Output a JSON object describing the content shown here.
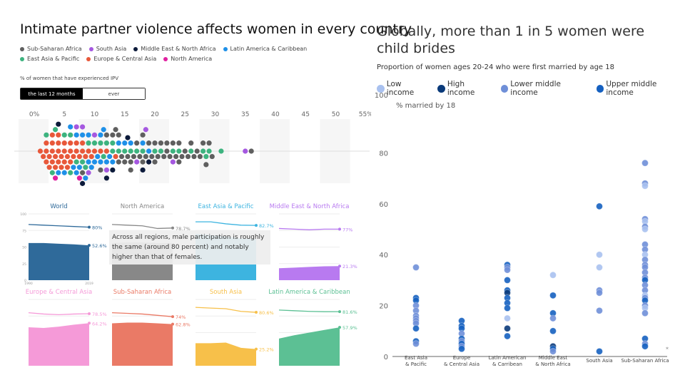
{
  "chart_data": [
    {
      "type": "scatter",
      "title": "Intimate partner violence affects women in every country",
      "subtitle": "% of women that have experienced IPV",
      "toggle": {
        "options": [
          "the last 12 months",
          "ever"
        ],
        "selected": "the last 12 months"
      },
      "x_ticks": [
        "0%",
        "5",
        "10",
        "15",
        "20",
        "25",
        "30",
        "35",
        "40",
        "45",
        "50",
        "55%"
      ],
      "xlim": [
        0,
        55
      ],
      "legend": [
        {
          "name": "Sub-Saharan Africa",
          "color": "#5f5f5f"
        },
        {
          "name": "South Asia",
          "color": "#a558e0"
        },
        {
          "name": "Middle East & North Africa",
          "color": "#0c1a3a"
        },
        {
          "name": "Latin America & Caribbean",
          "color": "#1e90e8"
        },
        {
          "name": "East Asia & Pacific",
          "color": "#3db37f"
        },
        {
          "name": "Europe & Central Asia",
          "color": "#e8583a"
        },
        {
          "name": "North America",
          "color": "#e020a0"
        }
      ],
      "series": {
        "Europe & Central Asia": [
          1,
          1.5,
          2,
          2,
          2.5,
          2.5,
          3,
          3,
          3,
          3.5,
          3.5,
          4,
          4,
          4,
          4.5,
          4.5,
          5,
          5,
          5,
          5.5,
          5.5,
          6,
          6,
          6,
          6.5,
          7,
          7,
          7.5,
          8,
          8,
          8.5,
          9,
          9.5,
          10,
          11,
          12,
          13.5,
          2,
          3,
          4
        ],
        "East Asia & Pacific": [
          2,
          3,
          3.5,
          5,
          6,
          7,
          8,
          8.5,
          9,
          10,
          11,
          11.5,
          12,
          13,
          14,
          15,
          16,
          17,
          18,
          20,
          21,
          23,
          24,
          26,
          28,
          28.5,
          29,
          31,
          6,
          13
        ],
        "Latin America & Caribbean": [
          4,
          5,
          6,
          6.5,
          7,
          7.5,
          8,
          8.5,
          9,
          9.5,
          10,
          10.5,
          11,
          11.5,
          12,
          12.5,
          13,
          14,
          15,
          16,
          18,
          19,
          7,
          9,
          11
        ],
        "Sub-Saharan Africa": [
          8,
          11,
          12,
          13,
          13.5,
          14,
          14.5,
          15,
          15.5,
          16,
          16.5,
          17,
          17.5,
          18,
          18.5,
          19,
          19.5,
          20,
          20.5,
          21,
          21.5,
          22,
          22.5,
          23,
          23.5,
          24,
          24.5,
          25,
          25.5,
          26,
          26.5,
          27,
          27.5,
          28,
          28.5,
          29,
          29.5,
          36,
          14,
          16,
          18,
          20,
          22,
          24
        ],
        "South Asia": [
          7,
          8,
          9,
          10,
          12,
          17,
          18.5,
          23,
          35
        ],
        "Middle East & North Africa": [
          4,
          8,
          12,
          13,
          15.5,
          18,
          19
        ],
        "North America": [
          3.5,
          7.5
        ]
      }
    },
    {
      "type": "area",
      "y_ticks": [
        "100",
        "75",
        "50",
        "25",
        "0"
      ],
      "x_ticks": [
        "1990",
        "2019"
      ],
      "ylim": [
        0,
        100
      ],
      "tooltip": "Across all regions, male participation is roughly the same (around 80 percent) and notably higher than that of females.",
      "panels": [
        {
          "title": "World",
          "color": "#2f6a9a",
          "male": [
            84,
            83,
            82,
            81,
            80
          ],
          "female": [
            56,
            56,
            55,
            54,
            52.6
          ],
          "male_label": "80%",
          "female_label": "52.6%"
        },
        {
          "title": "North America",
          "color": "#888888",
          "male": [
            84,
            83,
            82,
            78,
            78.7
          ],
          "female": [
            56,
            57,
            57,
            56,
            56
          ],
          "male_label": "78.7%",
          "female_label": ""
        },
        {
          "title": "East Asia & Pacific",
          "color": "#3db4e0",
          "male": [
            88,
            88,
            85,
            83,
            82.7
          ],
          "female": [
            70,
            68,
            66,
            63,
            62
          ],
          "male_label": "82.7%",
          "female_label": ""
        },
        {
          "title": "Middle East & North Africa",
          "color": "#b87af0",
          "male": [
            78,
            77,
            76,
            77,
            77
          ],
          "female": [
            18,
            19,
            20,
            21,
            21.3
          ],
          "male_label": "77%",
          "female_label": "21.3%"
        },
        {
          "title": "Europe & Central Asia",
          "color": "#f59ad8",
          "male": [
            80,
            78,
            77,
            78,
            78.5
          ],
          "female": [
            58,
            57,
            59,
            62,
            64.2
          ],
          "male_label": "78.5%",
          "female_label": "64.2%"
        },
        {
          "title": "Sub-Saharan Africa",
          "color": "#ea7a66",
          "male": [
            80,
            79,
            78,
            76,
            74
          ],
          "female": [
            64,
            65,
            65,
            64,
            62.8
          ],
          "male_label": "74%",
          "female_label": "62.8%"
        },
        {
          "title": "South Asia",
          "color": "#f7c04a",
          "male": [
            88,
            87,
            86,
            82,
            80.6
          ],
          "female": [
            34,
            34,
            35,
            27,
            25.2
          ],
          "male_label": "80.6%",
          "female_label": "25.2%"
        },
        {
          "title": "Latin America & Caribbean",
          "color": "#5cc094",
          "male": [
            84,
            83,
            82,
            81.5,
            81.6
          ],
          "female": [
            41,
            46,
            50,
            54,
            57.9
          ],
          "male_label": "81.6%",
          "female_label": "57.9%"
        }
      ]
    },
    {
      "type": "scatter",
      "title": "Globally, more than 1 in 5 women were child brides",
      "subtitle": "Proportion of women ages 20-24 who were first married by age 18",
      "ylabel": "% married by 18",
      "ylim": [
        0,
        100
      ],
      "y_ticks": [
        "0",
        "20",
        "40",
        "60",
        "80",
        "100"
      ],
      "categories": [
        "East Asia\n& Pacific",
        "Europe\n& Central Asia",
        "Latin American\n& Carribean",
        "Middle East\n& North Africa",
        "South Asia",
        "Sub-Saharan Africa"
      ],
      "note": "*",
      "legend": [
        {
          "name": "Low income",
          "color": "#a9c1ef"
        },
        {
          "name": "High income",
          "color": "#0a3a7a"
        },
        {
          "name": "Lower middle income",
          "color": "#6f8fd8"
        },
        {
          "name": "Upper middle income",
          "color": "#1560c0"
        }
      ],
      "points": [
        [
          0,
          35,
          "Lower middle income"
        ],
        [
          0,
          23,
          "Upper middle income"
        ],
        [
          0,
          22,
          "Upper middle income"
        ],
        [
          0,
          20,
          "Lower middle income"
        ],
        [
          0,
          18,
          "Lower middle income"
        ],
        [
          0,
          16,
          "Lower middle income"
        ],
        [
          0,
          15,
          "Lower middle income"
        ],
        [
          0,
          14,
          "Lower middle income"
        ],
        [
          0,
          13,
          "Lower middle income"
        ],
        [
          0,
          11,
          "Upper middle income"
        ],
        [
          0,
          6,
          "Upper middle income"
        ],
        [
          0,
          5,
          "Lower middle income"
        ],
        [
          1,
          14,
          "Upper middle income"
        ],
        [
          1,
          12,
          "Upper middle income"
        ],
        [
          1,
          11,
          "Upper middle income"
        ],
        [
          1,
          9,
          "Lower middle income"
        ],
        [
          1,
          7,
          "Upper middle income"
        ],
        [
          1,
          6,
          "Lower middle income"
        ],
        [
          1,
          5,
          "Upper middle income"
        ],
        [
          1,
          4,
          "Lower middle income"
        ],
        [
          1,
          3,
          "Upper middle income"
        ],
        [
          2,
          36,
          "Upper middle income"
        ],
        [
          2,
          35,
          "Lower middle income"
        ],
        [
          2,
          34,
          "Lower middle income"
        ],
        [
          2,
          30,
          "Upper middle income"
        ],
        [
          2,
          26,
          "Upper middle income"
        ],
        [
          2,
          25,
          "High income"
        ],
        [
          2,
          23,
          "Upper middle income"
        ],
        [
          2,
          21,
          "Upper middle income"
        ],
        [
          2,
          19,
          "Upper middle income"
        ],
        [
          2,
          15,
          "Low income"
        ],
        [
          2,
          11,
          "High income"
        ],
        [
          2,
          8,
          "Upper middle income"
        ],
        [
          3,
          32,
          "Low income"
        ],
        [
          3,
          24,
          "Upper middle income"
        ],
        [
          3,
          17,
          "Upper middle income"
        ],
        [
          3,
          15,
          "Lower middle income"
        ],
        [
          3,
          10,
          "Upper middle income"
        ],
        [
          3,
          4,
          "High income"
        ],
        [
          3,
          3,
          "Upper middle income"
        ],
        [
          3,
          2,
          "Lower middle income"
        ],
        [
          4,
          59,
          "Upper middle income"
        ],
        [
          4,
          40,
          "Low income"
        ],
        [
          4,
          35,
          "Low income"
        ],
        [
          4,
          26,
          "Lower middle income"
        ],
        [
          4,
          25,
          "Lower middle income"
        ],
        [
          4,
          18,
          "Lower middle income"
        ],
        [
          4,
          2,
          "Upper middle income"
        ],
        [
          5,
          76,
          "Lower middle income"
        ],
        [
          5,
          68,
          "Lower middle income"
        ],
        [
          5,
          67,
          "Low income"
        ],
        [
          5,
          54,
          "Lower middle income"
        ],
        [
          5,
          53,
          "Low income"
        ],
        [
          5,
          51,
          "Lower middle income"
        ],
        [
          5,
          50,
          "Low income"
        ],
        [
          5,
          44,
          "Lower middle income"
        ],
        [
          5,
          42,
          "Lower middle income"
        ],
        [
          5,
          40,
          "Low income"
        ],
        [
          5,
          38,
          "Lower middle income"
        ],
        [
          5,
          36,
          "Lower middle income"
        ],
        [
          5,
          35,
          "Lower middle income"
        ],
        [
          5,
          33,
          "Lower middle income"
        ],
        [
          5,
          31,
          "Lower middle income"
        ],
        [
          5,
          30,
          "Upper middle income"
        ],
        [
          5,
          28,
          "Lower middle income"
        ],
        [
          5,
          26,
          "Lower middle income"
        ],
        [
          5,
          24,
          "Low income"
        ],
        [
          5,
          23,
          "Lower middle income"
        ],
        [
          5,
          22,
          "Upper middle income"
        ],
        [
          5,
          20,
          "Lower middle income"
        ],
        [
          5,
          19,
          "Low income"
        ],
        [
          5,
          17,
          "Lower middle income"
        ],
        [
          5,
          7,
          "Upper middle income"
        ],
        [
          5,
          5,
          "Lower middle income"
        ],
        [
          5,
          4,
          "Upper middle income"
        ]
      ]
    }
  ]
}
